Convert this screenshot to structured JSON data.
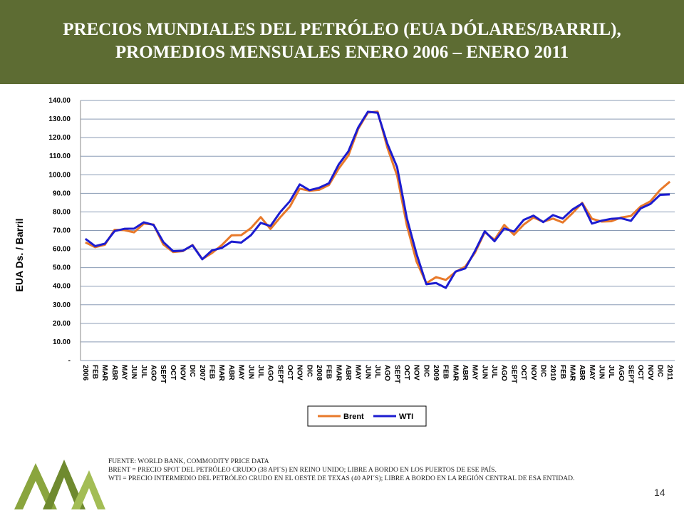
{
  "chart_data": {
    "type": "line",
    "title": [
      "PRECIOS MUNDIALES DEL PETRÓLEO (EUA DÓLARES/BARRIL),",
      "PROMEDIOS MENSUALES ENERO 2006 – ENERO 2011"
    ],
    "y_label": "EUA Ds. / Barril",
    "categories": [
      "2006",
      "FEB",
      "MAR",
      "ABR",
      "MAY",
      "JUN",
      "JUL",
      "AGO",
      "SEPT",
      "OCT",
      "NOV",
      "DIC",
      "2007",
      "FEB",
      "MAR",
      "ABR",
      "MAY",
      "JUN",
      "JUL",
      "AGO",
      "SEPT",
      "OCT",
      "NOV",
      "DIC",
      "2008",
      "FEB",
      "MAR",
      "ABR",
      "MAY",
      "JUN",
      "JUL",
      "AGO",
      "SEPT",
      "OCT",
      "NOV",
      "DIC",
      "2009",
      "FEB",
      "MAR",
      "ABR",
      "MAY",
      "JUN",
      "JUL",
      "AGO",
      "SEPT",
      "OCT",
      "NOV",
      "DIC",
      "2010",
      "FEB",
      "MAR",
      "ABR",
      "MAY",
      "JUN",
      "JUL",
      "AGO",
      "SEPT",
      "OCT",
      "NOV",
      "DIC",
      "2011"
    ],
    "series": [
      {
        "name": "Brent",
        "color": "#e8792a",
        "values": [
          63.6,
          61.0,
          62.3,
          70.4,
          70.2,
          69.0,
          73.7,
          73.2,
          62.5,
          58.4,
          58.9,
          62.2,
          54.6,
          57.9,
          62.1,
          67.4,
          67.5,
          71.3,
          77.2,
          70.8,
          77.1,
          82.9,
          92.5,
          91.4,
          91.9,
          94.5,
          103.3,
          110.4,
          124.6,
          133.5,
          134.0,
          114.6,
          99.6,
          72.8,
          53.2,
          41.6,
          44.9,
          43.4,
          47.7,
          50.6,
          58.1,
          69.1,
          65.0,
          73.0,
          67.7,
          73.2,
          77.0,
          74.7,
          76.4,
          74.3,
          79.3,
          84.9,
          76.3,
          74.8,
          75.0,
          77.0,
          77.8,
          82.9,
          85.7,
          91.8,
          96.3
        ]
      },
      {
        "name": "WTI",
        "color": "#1c1cd0",
        "values": [
          65.5,
          61.6,
          62.9,
          69.7,
          70.9,
          71.0,
          74.4,
          73.0,
          63.8,
          58.9,
          59.1,
          62.0,
          54.5,
          59.3,
          60.6,
          64.0,
          63.5,
          67.5,
          74.1,
          72.4,
          79.9,
          85.8,
          94.8,
          91.7,
          93.0,
          95.4,
          105.5,
          112.6,
          125.4,
          133.9,
          133.4,
          116.7,
          104.1,
          76.6,
          57.3,
          41.1,
          41.7,
          39.1,
          47.9,
          49.6,
          59.0,
          69.6,
          64.2,
          71.1,
          69.4,
          75.7,
          78.0,
          74.5,
          78.3,
          76.4,
          81.3,
          84.5,
          73.7,
          75.3,
          76.3,
          76.6,
          75.2,
          81.9,
          84.3,
          89.2,
          89.4
        ]
      }
    ],
    "ylim": [
      0,
      140
    ],
    "yticks": [
      {
        "value": 0,
        "label": "-"
      },
      {
        "value": 10,
        "label": "10.00"
      },
      {
        "value": 20,
        "label": "20.00"
      },
      {
        "value": 30,
        "label": "30.00"
      },
      {
        "value": 40,
        "label": "40.00"
      },
      {
        "value": 50,
        "label": "50.00"
      },
      {
        "value": 60,
        "label": "60.00"
      },
      {
        "value": 70,
        "label": "70.00"
      },
      {
        "value": 80,
        "label": "80.00"
      },
      {
        "value": 90,
        "label": "90.00"
      },
      {
        "value": 100,
        "label": "100.00"
      },
      {
        "value": 110,
        "label": "110.00"
      },
      {
        "value": 120,
        "label": "120.00"
      },
      {
        "value": 130,
        "label": "130.00"
      },
      {
        "value": 140,
        "label": "140.00"
      }
    ],
    "grid": true,
    "legend": "bottom"
  },
  "footnotes": [
    "FUENTE: WORLD BANK, COMMODITY PRICE DATA",
    "BRENT = PRECIO SPOT DEL PETRÓLEO CRUDO (38 API´S) EN REINO UNIDO; LIBRE A BORDO EN LOS PUERTOS DE ESE PAÍS.",
    "WTI = PRECIO INTERMEDIO DEL PETRÓLEO CRUDO EN EL OESTE DE TEXAS (40 API´S); LIBRE A BORDO EN LA REGIÓN CENTRAL DE ESA ENTIDAD."
  ],
  "page_number": "14"
}
